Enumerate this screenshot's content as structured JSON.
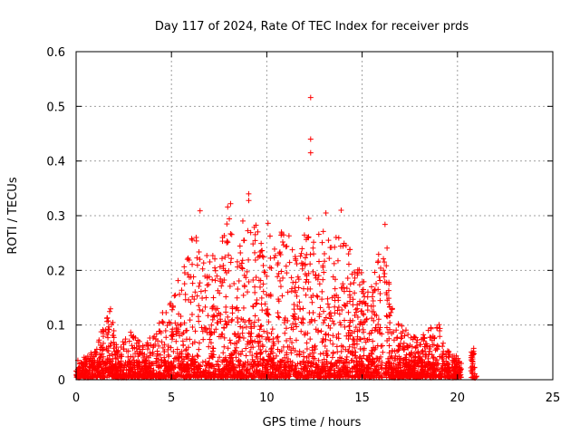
{
  "chart_data": {
    "type": "scatter",
    "title": "Day 117 of 2024, Rate Of TEC Index for receiver prds",
    "xlabel": "GPS time / hours",
    "ylabel": "ROTI / TECUs",
    "xlim": [
      0,
      25
    ],
    "ylim": [
      0,
      0.6
    ],
    "xticks": [
      "0",
      "5",
      "10",
      "15",
      "20",
      "25"
    ],
    "yticks": [
      "0",
      "0.1",
      "0.2",
      "0.3",
      "0.4",
      "0.5",
      "0.6"
    ],
    "grid": true,
    "legend": "none",
    "marker": "plus",
    "color": "#ff0000",
    "envelope": [
      [
        0.0,
        0.03
      ],
      [
        0.5,
        0.04
      ],
      [
        1.0,
        0.06
      ],
      [
        1.5,
        0.1
      ],
      [
        1.8,
        0.13
      ],
      [
        2.2,
        0.05
      ],
      [
        2.8,
        0.09
      ],
      [
        3.5,
        0.06
      ],
      [
        4.0,
        0.08
      ],
      [
        4.5,
        0.12
      ],
      [
        5.0,
        0.14
      ],
      [
        5.5,
        0.2
      ],
      [
        6.0,
        0.25
      ],
      [
        6.5,
        0.3
      ],
      [
        7.0,
        0.22
      ],
      [
        7.5,
        0.25
      ],
      [
        8.0,
        0.32
      ],
      [
        8.5,
        0.25
      ],
      [
        9.0,
        0.34
      ],
      [
        9.5,
        0.27
      ],
      [
        10.0,
        0.29
      ],
      [
        10.5,
        0.26
      ],
      [
        11.0,
        0.28
      ],
      [
        11.5,
        0.23
      ],
      [
        12.0,
        0.27
      ],
      [
        12.5,
        0.25
      ],
      [
        13.0,
        0.28
      ],
      [
        13.5,
        0.24
      ],
      [
        14.0,
        0.31
      ],
      [
        14.5,
        0.22
      ],
      [
        15.0,
        0.2
      ],
      [
        15.5,
        0.17
      ],
      [
        16.2,
        0.28
      ],
      [
        16.6,
        0.12
      ],
      [
        17.0,
        0.1
      ],
      [
        17.5,
        0.08
      ],
      [
        18.0,
        0.07
      ],
      [
        18.5,
        0.09
      ],
      [
        19.0,
        0.1
      ],
      [
        19.5,
        0.05
      ],
      [
        20.0,
        0.04
      ],
      [
        20.2,
        0.02
      ]
    ],
    "late_cluster": {
      "x_range": [
        20.7,
        21.0
      ],
      "max": 0.055
    },
    "outliers": [
      {
        "x": 12.3,
        "y": 0.516
      },
      {
        "x": 12.3,
        "y": 0.44
      },
      {
        "x": 12.3,
        "y": 0.415
      },
      {
        "x": 13.1,
        "y": 0.305
      },
      {
        "x": 12.2,
        "y": 0.295
      },
      {
        "x": 9.05,
        "y": 0.34
      },
      {
        "x": 8.1,
        "y": 0.322
      },
      {
        "x": 13.9,
        "y": 0.31
      },
      {
        "x": 16.2,
        "y": 0.284
      },
      {
        "x": 6.5,
        "y": 0.309
      }
    ]
  }
}
